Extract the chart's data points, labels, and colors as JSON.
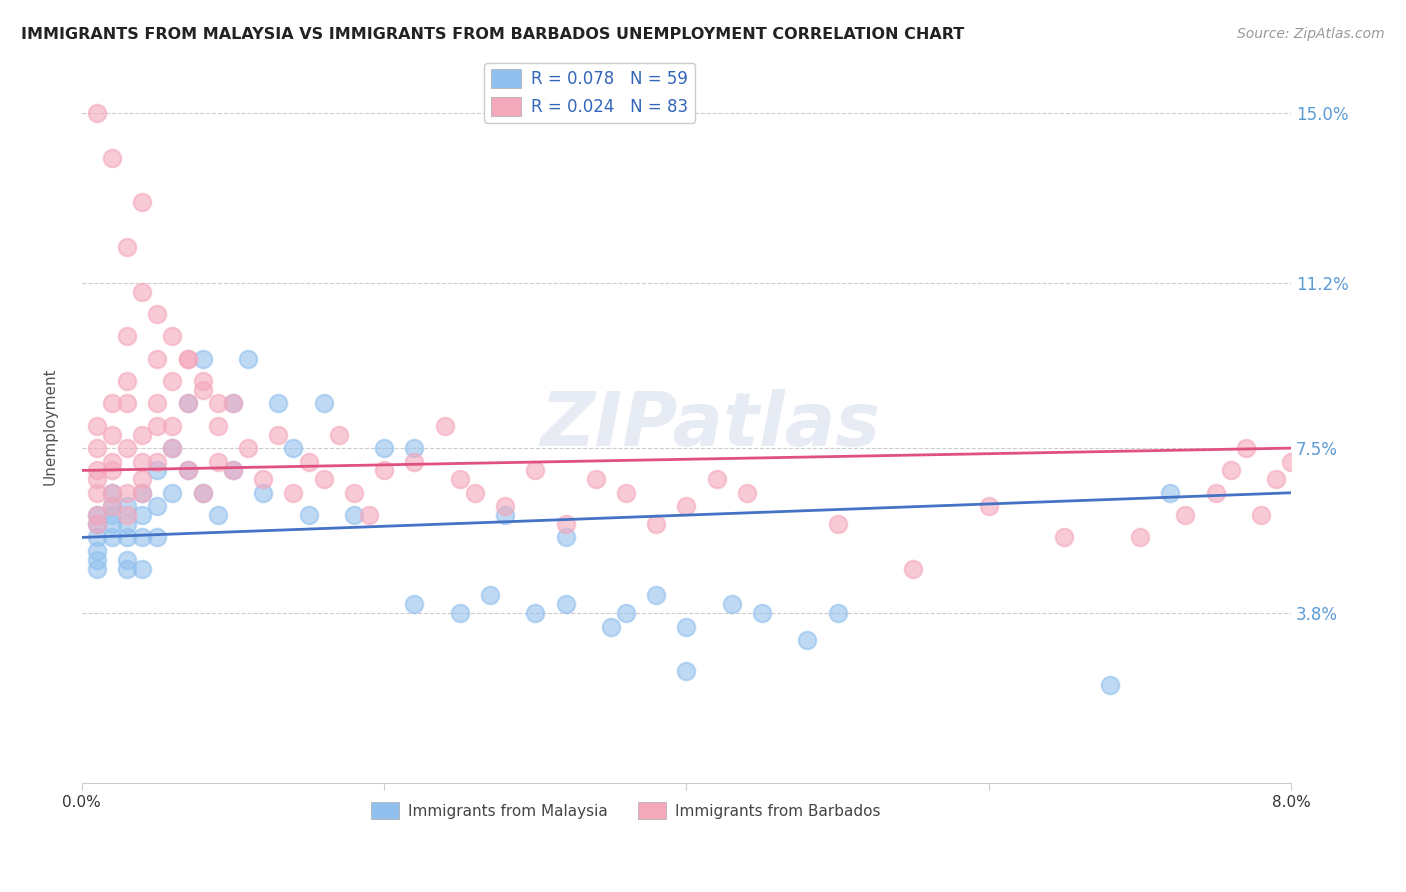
{
  "title": "IMMIGRANTS FROM MALAYSIA VS IMMIGRANTS FROM BARBADOS UNEMPLOYMENT CORRELATION CHART",
  "source": "Source: ZipAtlas.com",
  "ylabel": "Unemployment",
  "xlim": [
    0.0,
    0.08
  ],
  "ylim": [
    0.0,
    0.16
  ],
  "xtick_positions": [
    0.0,
    0.02,
    0.04,
    0.06,
    0.08
  ],
  "xtick_labels": [
    "0.0%",
    "",
    "",
    "",
    "8.0%"
  ],
  "ytick_positions": [
    0.038,
    0.075,
    0.112,
    0.15
  ],
  "ytick_labels": [
    "3.8%",
    "7.5%",
    "11.2%",
    "15.0%"
  ],
  "grid_color": "#cccccc",
  "malaysia_color": "#92C0EE",
  "barbados_color": "#F4A8BC",
  "malaysia_line_color": "#4472C4",
  "barbados_line_color": "#E05080",
  "watermark": "ZIPatlas",
  "background_color": "#ffffff",
  "malaysia_x": [
    0.001,
    0.001,
    0.001,
    0.001,
    0.001,
    0.001,
    0.002,
    0.002,
    0.002,
    0.002,
    0.002,
    0.003,
    0.003,
    0.003,
    0.003,
    0.003,
    0.004,
    0.004,
    0.004,
    0.004,
    0.005,
    0.005,
    0.005,
    0.006,
    0.006,
    0.007,
    0.007,
    0.008,
    0.008,
    0.009,
    0.01,
    0.01,
    0.011,
    0.012,
    0.013,
    0.014,
    0.015,
    0.016,
    0.018,
    0.02,
    0.022,
    0.025,
    0.027,
    0.03,
    0.032,
    0.035,
    0.038,
    0.04,
    0.043,
    0.045,
    0.048,
    0.05,
    0.022,
    0.028,
    0.032,
    0.036,
    0.04,
    0.068,
    0.072
  ],
  "malaysia_y": [
    0.055,
    0.06,
    0.058,
    0.05,
    0.048,
    0.052,
    0.062,
    0.055,
    0.06,
    0.058,
    0.065,
    0.058,
    0.055,
    0.062,
    0.05,
    0.048,
    0.065,
    0.06,
    0.055,
    0.048,
    0.07,
    0.062,
    0.055,
    0.075,
    0.065,
    0.085,
    0.07,
    0.095,
    0.065,
    0.06,
    0.085,
    0.07,
    0.095,
    0.065,
    0.085,
    0.075,
    0.06,
    0.085,
    0.06,
    0.075,
    0.04,
    0.038,
    0.042,
    0.038,
    0.04,
    0.035,
    0.042,
    0.035,
    0.04,
    0.038,
    0.032,
    0.038,
    0.075,
    0.06,
    0.055,
    0.038,
    0.025,
    0.022,
    0.065
  ],
  "barbados_x": [
    0.001,
    0.001,
    0.001,
    0.001,
    0.001,
    0.001,
    0.001,
    0.002,
    0.002,
    0.002,
    0.002,
    0.002,
    0.002,
    0.003,
    0.003,
    0.003,
    0.003,
    0.003,
    0.003,
    0.004,
    0.004,
    0.004,
    0.004,
    0.004,
    0.005,
    0.005,
    0.005,
    0.005,
    0.006,
    0.006,
    0.006,
    0.007,
    0.007,
    0.007,
    0.008,
    0.008,
    0.009,
    0.009,
    0.01,
    0.01,
    0.011,
    0.012,
    0.013,
    0.014,
    0.015,
    0.016,
    0.017,
    0.018,
    0.019,
    0.02,
    0.022,
    0.024,
    0.025,
    0.026,
    0.028,
    0.03,
    0.032,
    0.034,
    0.036,
    0.038,
    0.04,
    0.042,
    0.044,
    0.05,
    0.055,
    0.06,
    0.065,
    0.07,
    0.073,
    0.075,
    0.076,
    0.077,
    0.078,
    0.079,
    0.08,
    0.001,
    0.002,
    0.003,
    0.004,
    0.005,
    0.006,
    0.007,
    0.008,
    0.009
  ],
  "barbados_y": [
    0.06,
    0.065,
    0.07,
    0.075,
    0.08,
    0.058,
    0.068,
    0.072,
    0.065,
    0.078,
    0.085,
    0.07,
    0.062,
    0.09,
    0.075,
    0.085,
    0.065,
    0.1,
    0.06,
    0.13,
    0.068,
    0.078,
    0.065,
    0.072,
    0.095,
    0.08,
    0.085,
    0.072,
    0.09,
    0.08,
    0.075,
    0.085,
    0.095,
    0.07,
    0.088,
    0.065,
    0.08,
    0.072,
    0.085,
    0.07,
    0.075,
    0.068,
    0.078,
    0.065,
    0.072,
    0.068,
    0.078,
    0.065,
    0.06,
    0.07,
    0.072,
    0.08,
    0.068,
    0.065,
    0.062,
    0.07,
    0.058,
    0.068,
    0.065,
    0.058,
    0.062,
    0.068,
    0.065,
    0.058,
    0.048,
    0.062,
    0.055,
    0.055,
    0.06,
    0.065,
    0.07,
    0.075,
    0.06,
    0.068,
    0.072,
    0.15,
    0.14,
    0.12,
    0.11,
    0.105,
    0.1,
    0.095,
    0.09,
    0.085
  ]
}
